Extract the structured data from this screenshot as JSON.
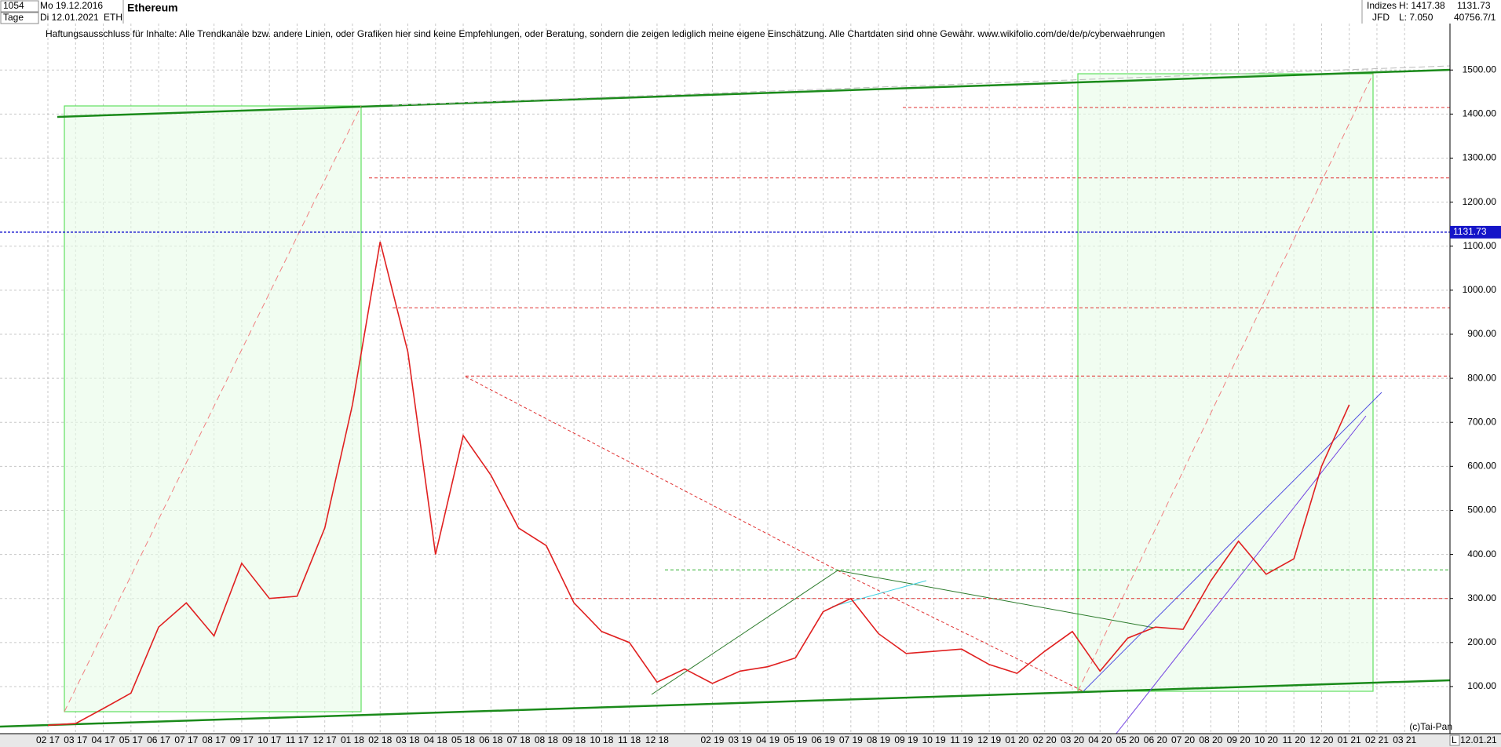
{
  "header": {
    "id": "1054",
    "start": "Mo 19.12.2016",
    "period": "Tage",
    "end": "Di 12.01.2021",
    "symbol": "ETH",
    "name": "Ethereum",
    "market": "Indizes",
    "broker": "JFD",
    "high": "H: 1417.38",
    "low": "L: 7.050",
    "volume": "40756.7/1",
    "disclaimer": "Haftungsausschluss für Inhalte: Alle Trendkanäle bzw. andere Linien, oder Grafiken hier sind keine Empfehlungen, oder Beratung, sondern die zeigen lediglich meine eigene Einschätzung. Alle Chartdaten sind ohne Gewähr.  www.wikifolio.com/de/de/p/cyberwaehrungen",
    "copyright": "(c)Tai-Pan",
    "scale": "L",
    "date": "12.01.21"
  },
  "chart_data": {
    "type": "line",
    "title": "Ethereum",
    "categories": [
      "02 17",
      "03 17",
      "04 17",
      "05 17",
      "06 17",
      "07 17",
      "08 17",
      "09 17",
      "10 17",
      "11 17",
      "12 17",
      "01 18",
      "02 18",
      "03 18",
      "04 18",
      "05 18",
      "06 18",
      "07 18",
      "08 18",
      "09 18",
      "10 18",
      "11 18",
      "12 18",
      null,
      "02 19",
      "03 19",
      "04 19",
      "05 19",
      "06 19",
      "07 19",
      "08 19",
      "09 19",
      "10 19",
      "11 19",
      "12 19",
      "01 20",
      "02 20",
      "03 20",
      "04 20",
      "05 20",
      "06 20",
      "07 20",
      "08 20",
      "09 20",
      "10 20",
      "11 20",
      "12 20",
      "01 21",
      "02 21",
      "03 21"
    ],
    "series": [
      {
        "name": "ETH",
        "color": "#e02020",
        "values": [
          12,
          16,
          50,
          85,
          235,
          290,
          215,
          380,
          300,
          305,
          460,
          740,
          1110,
          860,
          400,
          670,
          580,
          460,
          420,
          290,
          225,
          200,
          110,
          140,
          107,
          135,
          145,
          165,
          270,
          300,
          220,
          175,
          180,
          185,
          150,
          130,
          180,
          225,
          135,
          210,
          235,
          230,
          340,
          430,
          355,
          390,
          600,
          740,
          null,
          null
        ]
      }
    ],
    "last_price": 1131.73,
    "levels": [
      {
        "value": 1415,
        "color": "#e03030"
      },
      {
        "value": 1255,
        "color": "#e03030"
      },
      {
        "value": 960,
        "color": "#e03030"
      },
      {
        "value": 805,
        "color": "#e03030"
      },
      {
        "value": 365,
        "color": "#30b030"
      },
      {
        "value": 300,
        "color": "#e03030"
      }
    ],
    "ylim": [
      -7,
      1659
    ],
    "yticks": [
      {
        "value": 100,
        "label": "100.00"
      },
      {
        "value": 200,
        "label": "200.00"
      },
      {
        "value": 300,
        "label": "300.00"
      },
      {
        "value": 400,
        "label": "400.00"
      },
      {
        "value": 500,
        "label": "500.00"
      },
      {
        "value": 600,
        "label": "600.00"
      },
      {
        "value": 700,
        "label": "700.00"
      },
      {
        "value": 800,
        "label": "800.00"
      },
      {
        "value": 900,
        "label": "900.00"
      },
      {
        "value": 1000,
        "label": "1000.00"
      },
      {
        "value": 1100,
        "label": "1100.00"
      },
      {
        "value": 1200,
        "label": "1200.00"
      },
      {
        "value": 1300,
        "label": "1300.00"
      },
      {
        "value": 1400,
        "label": "1400.00"
      },
      {
        "value": 1500,
        "label": "1500.00"
      }
    ],
    "grid": true
  }
}
